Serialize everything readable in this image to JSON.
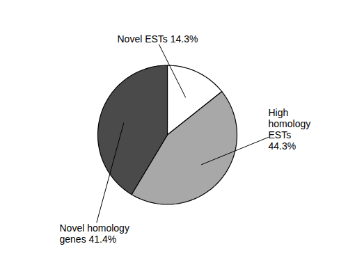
{
  "chart_data": {
    "type": "pie",
    "categories": [
      "Novel ESTs",
      "High homology ESTs",
      "Novel homology genes"
    ],
    "values": [
      14.3,
      44.3,
      41.4
    ],
    "colors": [
      "#ffffff",
      "#a8a8a8",
      "#4a4a4a"
    ],
    "annotations": [
      "Novel ESTs 14.3%",
      "High\nhomology\nESTs\n44.3%",
      "Novel homology\ngenes 41.4%"
    ]
  }
}
